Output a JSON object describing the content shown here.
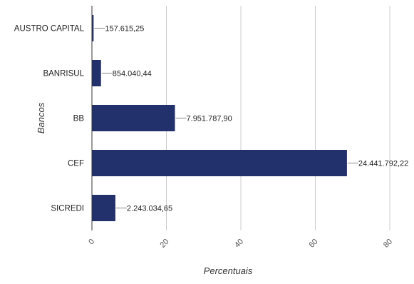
{
  "chart_data": {
    "type": "bar",
    "orientation": "horizontal",
    "xlabel": "Percentuais",
    "ylabel": "Bancos",
    "xlim": [
      0,
      80
    ],
    "xticks": [
      "0",
      "20",
      "40",
      "60",
      "80"
    ],
    "grid": true,
    "bar_color": "#22306b",
    "categories": [
      "AUSTRO CAPITAL",
      "BANRISUL",
      "BB",
      "CEF",
      "SICREDI"
    ],
    "values": [
      0.45,
      2.44,
      22.3,
      68.5,
      6.3
    ],
    "data_labels": [
      "157.615,25",
      "854.040,44",
      "7.951.787,90",
      "24.441.792,22",
      "2.243.034,65"
    ]
  }
}
